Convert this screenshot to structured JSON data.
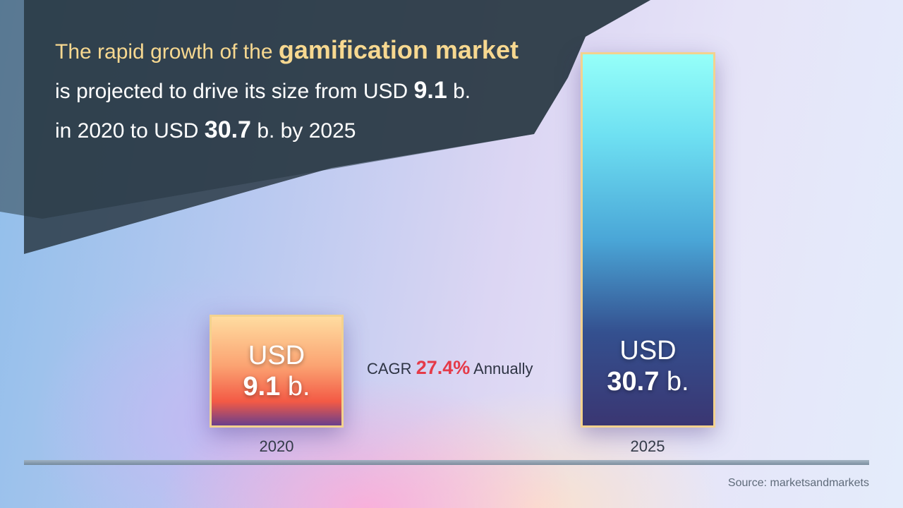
{
  "headline": {
    "line1_pre": "The rapid growth of the ",
    "line1_emph": "gamification market",
    "line2_pre": "is projected to drive its size from USD ",
    "line2_num": "9.1",
    "line2_post": " b.",
    "line3_pre": "in 2020 to USD ",
    "line3_num": "30.7",
    "line3_post": " b. by 2025"
  },
  "cagr": {
    "prefix": "CAGR ",
    "value": "27.4%",
    "suffix": " Annually"
  },
  "source": "Source: marketsandmarkets",
  "colors": {
    "accent_gold": "#f7d890",
    "cagr_red": "#e53a48",
    "banner": "#2c3f4a"
  },
  "chart_data": {
    "type": "bar",
    "categories": [
      "2020",
      "2025"
    ],
    "values": [
      9.1,
      30.7
    ],
    "value_labels": [
      {
        "currency": "USD",
        "number": "9.1",
        "unit": "b."
      },
      {
        "currency": "USD",
        "number": "30.7",
        "unit": "b."
      }
    ],
    "unit": "USD b.",
    "ylim": [
      0,
      30.7
    ],
    "grid": false,
    "legend": "none"
  }
}
